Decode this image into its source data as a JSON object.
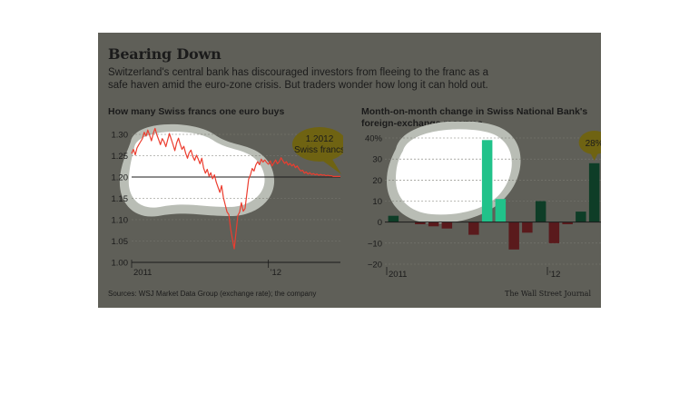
{
  "headline": "Bearing Down",
  "dek": "Switzerland's central bank has discouraged investors from fleeing to the franc as a safe haven amid the euro-zone crisis. But traders wonder how long it can hold out.",
  "source": "Sources: WSJ Market Data Group (exchange rate); the company",
  "credit": "The Wall Street Journal",
  "colors": {
    "panel": "#5f5f58",
    "highlight": "#ffffff",
    "line": "#ec3d2f",
    "positive": "#0e3d27",
    "negative": "#5a1a1c",
    "highlight_bar": "#21c28a",
    "callout": "#6f6312"
  },
  "chart_data": [
    {
      "type": "line",
      "title": "How many Swiss francs one euro buys",
      "ylim": [
        1.0,
        1.3
      ],
      "yticks": [
        "1.30",
        "1.25",
        "1.20",
        "1.15",
        "1.10",
        "1.05",
        "1.00"
      ],
      "xticks": [
        "2011",
        "'12"
      ],
      "reference_line": 1.2,
      "series": [
        {
          "values": [
            1.255,
            1.265,
            1.252,
            1.268,
            1.276,
            1.283,
            1.29,
            1.305,
            1.296,
            1.31,
            1.298,
            1.285,
            1.302,
            1.314,
            1.299,
            1.288,
            1.276,
            1.29,
            1.283,
            1.271,
            1.287,
            1.302,
            1.289,
            1.276,
            1.262,
            1.28,
            1.291,
            1.277,
            1.265,
            1.272,
            1.256,
            1.244,
            1.257,
            1.263,
            1.248,
            1.239,
            1.251,
            1.242,
            1.231,
            1.244,
            1.221,
            1.209,
            1.218,
            1.202,
            1.21,
            1.196,
            1.205,
            1.188,
            1.176,
            1.164,
            1.18,
            1.152,
            1.135,
            1.118,
            1.112,
            1.078,
            1.055,
            1.032,
            1.07,
            1.11,
            1.118,
            1.14,
            1.12,
            1.126,
            1.16,
            1.195,
            1.205,
            1.22,
            1.214,
            1.228,
            1.236,
            1.229,
            1.242,
            1.235,
            1.24,
            1.234,
            1.23,
            1.238,
            1.226,
            1.233,
            1.24,
            1.231,
            1.236,
            1.245,
            1.238,
            1.232,
            1.236,
            1.228,
            1.232,
            1.226,
            1.23,
            1.222,
            1.226,
            1.219,
            1.214,
            1.216,
            1.209,
            1.212,
            1.207,
            1.21,
            1.206,
            1.208,
            1.205,
            1.207,
            1.204,
            1.206,
            1.204,
            1.205,
            1.203,
            1.204,
            1.203,
            1.203,
            1.2012,
            1.2012,
            1.2012,
            1.2012,
            1.2012
          ]
        }
      ],
      "annotation": {
        "line1": "1.2012",
        "line2": "Swiss francs"
      }
    },
    {
      "type": "bar",
      "title": "Month-on-month change in Swiss National Bank's foreign-exchange reserves",
      "ylim": [
        -20,
        40
      ],
      "yticks": [
        "40%",
        "30",
        "20",
        "10",
        "0",
        "−10",
        "−20"
      ],
      "xticks": [
        "2011",
        "'12"
      ],
      "values": [
        3,
        0,
        -1,
        -2,
        -3,
        0,
        -6,
        39,
        11,
        -13,
        -5,
        10,
        -10,
        -1,
        5,
        28
      ],
      "highlight": [
        7,
        8
      ],
      "annotation": "28%"
    }
  ]
}
